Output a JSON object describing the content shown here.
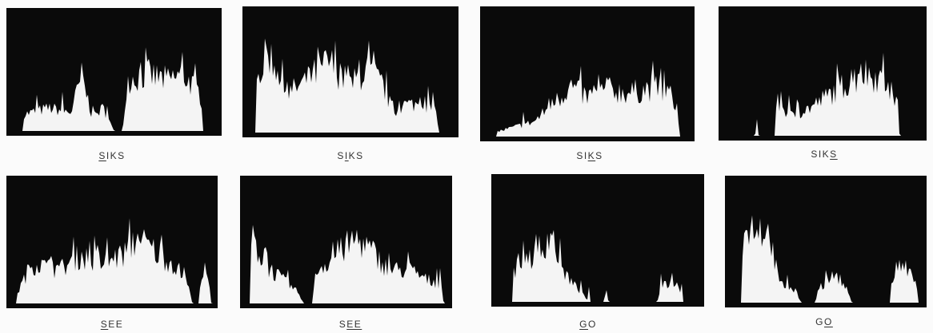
{
  "panels": [
    {
      "label": [
        {
          "text": "S",
          "underline": true
        },
        {
          "text": "IKS"
        }
      ]
    },
    {
      "label": [
        {
          "text": "S"
        },
        {
          "text": "I",
          "underline": true
        },
        {
          "text": "KS"
        }
      ]
    },
    {
      "label": [
        {
          "text": "SI"
        },
        {
          "text": "K",
          "underline": true
        },
        {
          "text": "S"
        }
      ]
    },
    {
      "label": [
        {
          "text": "SIK"
        },
        {
          "text": "S",
          "underline": true
        }
      ]
    },
    {
      "label": [
        {
          "text": "S",
          "underline": true
        },
        {
          "text": "EE"
        }
      ]
    },
    {
      "label": [
        {
          "text": "S"
        },
        {
          "text": "EE",
          "underline": true
        }
      ]
    },
    {
      "label": [
        {
          "text": "G",
          "underline": true
        },
        {
          "text": "O"
        }
      ]
    },
    {
      "label": [
        {
          "text": "G"
        },
        {
          "text": "O",
          "underline": true
        }
      ]
    }
  ]
}
